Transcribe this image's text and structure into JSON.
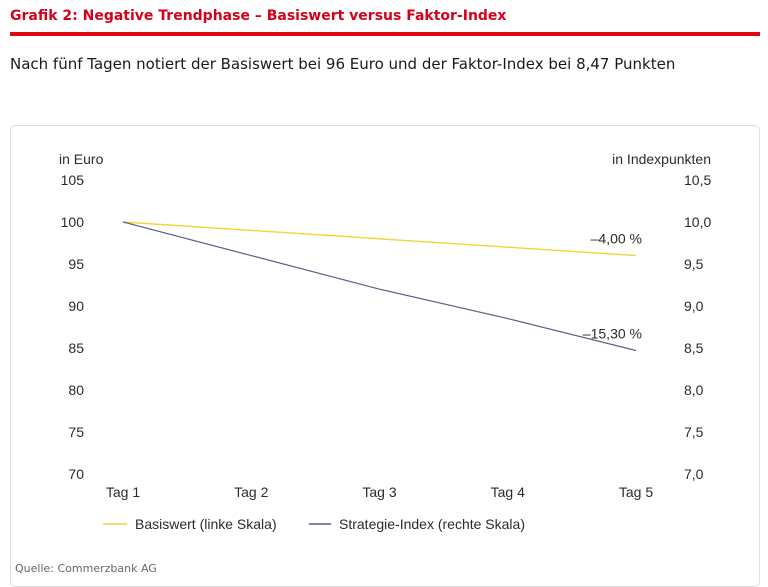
{
  "heading": "Grafik 2: Negative Trendphase – Basiswert versus Faktor-Index",
  "lead": "Nach fünf Tagen notiert der Basiswert bei 96 Euro und der Faktor-Index bei 8,47 Punkten",
  "source": "Quelle: Commerzbank AG",
  "colors": {
    "accent": "#e30613",
    "basiswert": "#f2d33a",
    "index": "#5c5f84"
  },
  "chart_data": {
    "type": "line",
    "categories": [
      "Tag 1",
      "Tag 2",
      "Tag 3",
      "Tag 4",
      "Tag 5"
    ],
    "left_axis": {
      "label": "in Euro",
      "ticks": [
        "105",
        "100",
        "95",
        "90",
        "85",
        "80",
        "75",
        "70"
      ],
      "range": [
        70,
        105
      ]
    },
    "right_axis": {
      "label": "in Indexpunkten",
      "ticks": [
        "10,5",
        "10,0",
        "9,5",
        "9,0",
        "8,5",
        "8,0",
        "7,5",
        "7,0"
      ],
      "range": [
        7.0,
        10.5
      ]
    },
    "series": [
      {
        "name": "Basiswert (linke Skala)",
        "axis": "left",
        "values": [
          100,
          99,
          98,
          97,
          96
        ],
        "end_label": "–4,00 %"
      },
      {
        "name": "Strategie-Index (rechte Skala)",
        "axis": "right",
        "values": [
          10.0,
          9.6,
          9.2,
          8.85,
          8.47
        ],
        "end_label": "–15,30 %"
      }
    ],
    "grid": false,
    "legend_position": "bottom-left"
  }
}
